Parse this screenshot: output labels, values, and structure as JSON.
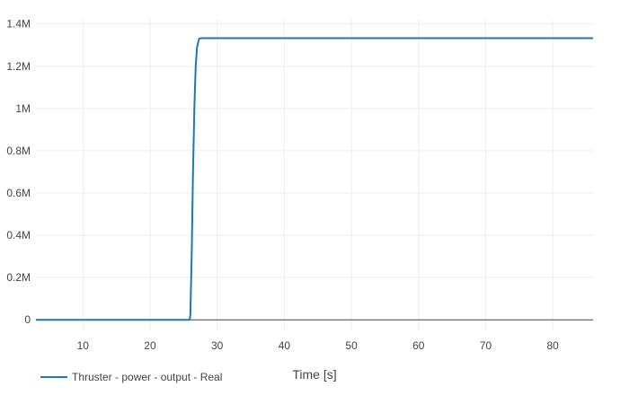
{
  "chart_data": {
    "type": "line",
    "title": "",
    "xlabel": "Time [s]",
    "ylabel": "",
    "xlim": [
      3,
      86
    ],
    "ylim": [
      -50000,
      1420000
    ],
    "xticks": [
      10,
      20,
      30,
      40,
      50,
      60,
      70,
      80
    ],
    "yticks": [
      0,
      200000,
      400000,
      600000,
      800000,
      1000000,
      1200000,
      1400000
    ],
    "ytick_labels": [
      "0",
      "0.2M",
      "0.4M",
      "0.6M",
      "0.8M",
      "1M",
      "1.2M",
      "1.4M"
    ],
    "grid": true,
    "legend_position": "bottom-left",
    "series": [
      {
        "name": "Thruster - power - output - Real",
        "color": "#1f77b4",
        "x": [
          3,
          10,
          20,
          25,
          25.9,
          26.0,
          26.2,
          26.4,
          26.6,
          26.8,
          27.0,
          27.3,
          27.6,
          28,
          30,
          40,
          50,
          60,
          70,
          80,
          86
        ],
        "y": [
          0,
          0,
          0,
          0,
          0,
          20000,
          300000,
          700000,
          1000000,
          1200000,
          1290000,
          1330000,
          1333000,
          1333000,
          1333000,
          1333000,
          1333000,
          1333000,
          1333000,
          1333000,
          1333000
        ]
      }
    ]
  }
}
